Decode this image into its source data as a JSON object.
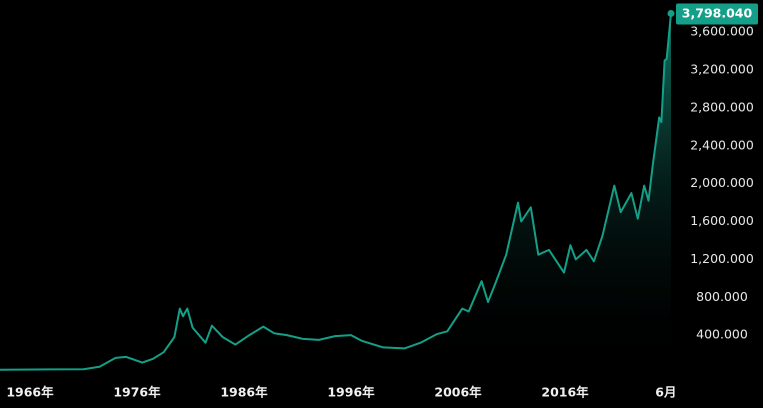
{
  "chart_data": {
    "type": "area",
    "series": [
      {
        "color": "#14a088",
        "x": [
          1963.2,
          1968,
          1971,
          1972.5,
          1974,
          1975,
          1976.5,
          1977.5,
          1978.5,
          1979.5,
          1980.0,
          1980.3,
          1980.7,
          1981.2,
          1982.4,
          1983.0,
          1984,
          1985.2,
          1986.5,
          1987.8,
          1988.8,
          1990,
          1991.5,
          1993,
          1994.5,
          1996,
          1997,
          1999,
          2001,
          2002.5,
          2004,
          2005,
          2006.4,
          2007,
          2008.2,
          2008.8,
          2009.5,
          2010.5,
          2011.6,
          2011.9,
          2012.8,
          2013.5,
          2014.5,
          2015.9,
          2016.5,
          2017,
          2018,
          2018.7,
          2019.5,
          2020.6,
          2021.2,
          2022.2,
          2022.8,
          2023.4,
          2023.8,
          2024.2,
          2024.8,
          2025.0,
          2025.3,
          2025.5,
          2025.9
        ],
        "values": [
          35,
          38,
          40,
          65,
          160,
          170,
          110,
          150,
          220,
          380,
          680,
          600,
          680,
          480,
          320,
          500,
          380,
          300,
          400,
          490,
          420,
          400,
          360,
          350,
          390,
          400,
          340,
          270,
          260,
          320,
          410,
          440,
          680,
          650,
          970,
          750,
          950,
          1250,
          1800,
          1600,
          1750,
          1250,
          1300,
          1060,
          1350,
          1200,
          1300,
          1180,
          1450,
          1980,
          1700,
          1900,
          1630,
          1980,
          1820,
          2200,
          2700,
          2650,
          3300,
          3320,
          3798.04
        ],
        "value_labels": [
          null,
          null,
          null,
          null,
          null,
          null,
          null,
          null,
          null,
          null,
          null,
          null,
          null,
          null,
          null,
          null,
          null,
          null,
          null,
          null,
          null,
          null,
          null,
          null,
          null,
          null,
          null,
          null,
          null,
          null,
          null,
          null,
          null,
          null,
          null,
          null,
          null,
          null,
          null,
          null,
          null,
          null,
          null,
          null,
          null,
          null,
          null,
          null,
          null,
          null,
          null,
          null,
          null,
          null,
          null,
          null,
          null,
          null,
          null,
          null,
          "3,798.040"
        ]
      }
    ],
    "xlim": [
      1963.2,
      2025.9
    ],
    "ylim": [
      0,
      3940
    ],
    "xticks": [
      {
        "value": 1966,
        "label": "1966年"
      },
      {
        "value": 1976,
        "label": "1976年"
      },
      {
        "value": 1986,
        "label": "1986年"
      },
      {
        "value": 1996,
        "label": "1996年"
      },
      {
        "value": 2006,
        "label": "2006年"
      },
      {
        "value": 2016,
        "label": "2016年"
      },
      {
        "value": 2025.42,
        "label": "6月"
      }
    ],
    "yticks": [
      {
        "value": 400,
        "label": "400.000"
      },
      {
        "value": 800,
        "label": "800.000"
      },
      {
        "value": 1200,
        "label": "1,200.000"
      },
      {
        "value": 1600,
        "label": "1,600.000"
      },
      {
        "value": 2000,
        "label": "2,000.000"
      },
      {
        "value": 2400,
        "label": "2,400.000"
      },
      {
        "value": 2800,
        "label": "2,800.000"
      },
      {
        "value": 3200,
        "label": "3,200.000"
      },
      {
        "value": 3600,
        "label": "3,600.000"
      }
    ]
  }
}
